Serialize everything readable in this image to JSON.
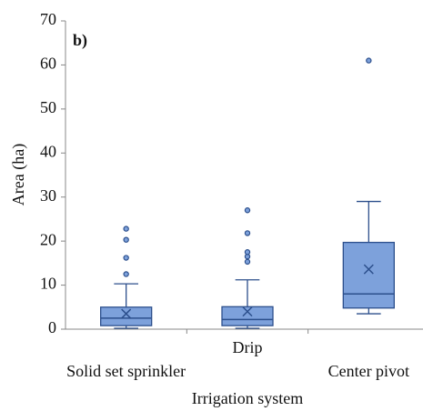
{
  "chart_data": {
    "type": "box",
    "annotation": "b)",
    "ylabel": "Area (ha)",
    "xlabel": "Irrigation system",
    "categories": [
      "Solid set sprinkler",
      "Drip",
      "Center pivot"
    ],
    "color": "#7da1db",
    "edge_color": "#2c4f8c",
    "boxes": [
      {
        "min": 0.2,
        "q1": 0.8,
        "median": 2.5,
        "q3": 5,
        "max": 10.3,
        "mean": 3.5,
        "outliers": [
          12.5,
          16.2,
          20.3,
          22.8
        ]
      },
      {
        "min": 0.2,
        "q1": 0.8,
        "median": 2.2,
        "q3": 5.1,
        "max": 11.2,
        "mean": 4,
        "outliers": [
          15.3,
          16.5,
          17.5,
          21.8,
          27
        ]
      },
      {
        "min": 3.5,
        "q1": 4.8,
        "median": 8,
        "q3": 19.7,
        "max": 29,
        "mean": 13.6,
        "outliers": [
          61
        ]
      }
    ],
    "ylim": [
      0,
      70
    ],
    "yticks": [
      0,
      10,
      20,
      30,
      40,
      50,
      60,
      70
    ]
  }
}
